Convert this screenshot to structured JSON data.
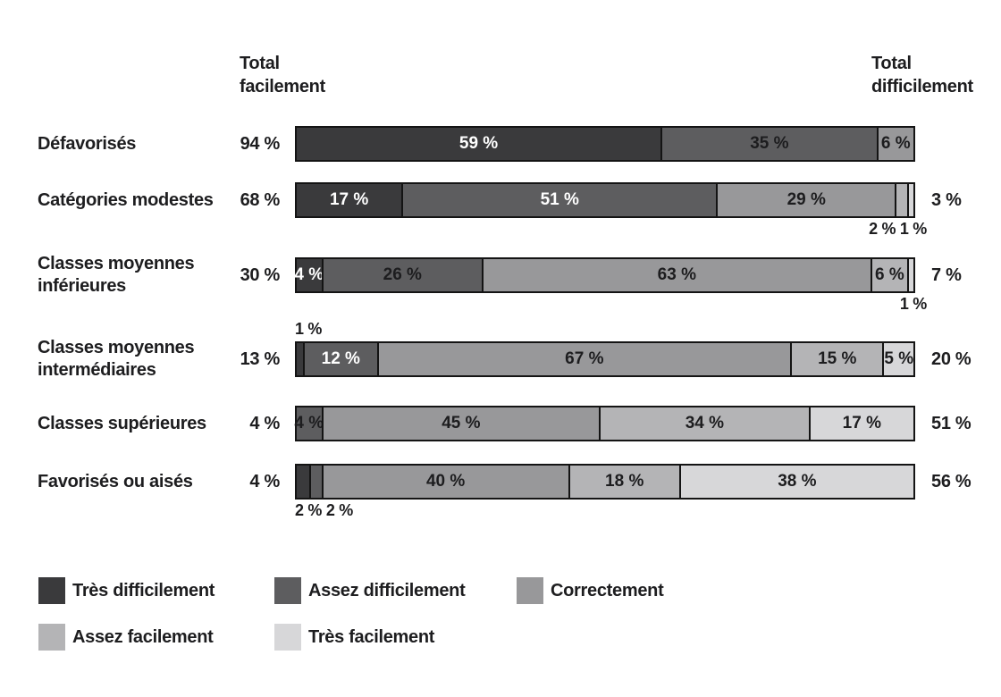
{
  "chart_data": {
    "type": "bar",
    "orientation": "horizontal",
    "stacked": true,
    "unit": "%",
    "title": "",
    "col_left_header": "Total facilement",
    "col_right_header": "Total difficilement",
    "grid": false,
    "legend_position": "bottom",
    "legend": [
      {
        "name": "tres-difficilement",
        "label": "Très difficilement",
        "color": "#3a3a3c"
      },
      {
        "name": "assez-difficilement",
        "label": "Assez difficilement",
        "color": "#5d5d5f"
      },
      {
        "name": "correctement",
        "label": "Correctement",
        "color": "#98989a"
      },
      {
        "name": "assez-facilement",
        "label": "Assez facilement",
        "color": "#b4b4b6"
      },
      {
        "name": "tres-facilement",
        "label": "Très facilement",
        "color": "#d7d7d9"
      }
    ],
    "label_colors": {
      "light": "#ffffff",
      "dark": "#1d1d1f"
    },
    "rows": [
      {
        "category_lines": [
          "Défavorisés"
        ],
        "total_left": "94 %",
        "total_right": "",
        "segments": [
          {
            "series": 0,
            "value": 59,
            "label": "59 %",
            "label_style": "light"
          },
          {
            "series": 1,
            "value": 35,
            "label": "35 %",
            "label_style": "dark"
          },
          {
            "series": 2,
            "value": 6,
            "label": "6 %",
            "label_style": "dark"
          }
        ],
        "callouts": []
      },
      {
        "category_lines": [
          "Catégories modestes"
        ],
        "total_left": "68 %",
        "total_right": "3 %",
        "segments": [
          {
            "series": 0,
            "value": 17,
            "label": "17 %",
            "label_style": "light"
          },
          {
            "series": 1,
            "value": 51,
            "label": "51 %",
            "label_style": "light"
          },
          {
            "series": 2,
            "value": 29,
            "label": "29 %",
            "label_style": "dark"
          },
          {
            "series": 3,
            "value": 2,
            "label": "",
            "label_style": "none"
          },
          {
            "series": 4,
            "value": 1,
            "label": "",
            "label_style": "none"
          }
        ],
        "callouts": [
          {
            "text": "2 % 1 %",
            "position": "below-right"
          }
        ]
      },
      {
        "category_lines": [
          "Classes moyennes",
          "inférieures"
        ],
        "total_left": "30 %",
        "total_right": "7 %",
        "segments": [
          {
            "series": 0,
            "value": 4,
            "label": "4 %",
            "label_style": "light"
          },
          {
            "series": 1,
            "value": 26,
            "label": "26 %",
            "label_style": "dark"
          },
          {
            "series": 2,
            "value": 63,
            "label": "63 %",
            "label_style": "dark"
          },
          {
            "series": 3,
            "value": 6,
            "label": "6 %",
            "label_style": "dark"
          },
          {
            "series": 4,
            "value": 1,
            "label": "",
            "label_style": "none"
          }
        ],
        "callouts": [
          {
            "text": "1 %",
            "position": "below-right"
          }
        ]
      },
      {
        "category_lines": [
          "Classes moyennes",
          "intermédiaires"
        ],
        "total_left": "13 %",
        "total_right": "20 %",
        "segments": [
          {
            "series": 0,
            "value": 1,
            "label": "",
            "label_style": "none"
          },
          {
            "series": 1,
            "value": 12,
            "label": "12 %",
            "label_style": "light"
          },
          {
            "series": 2,
            "value": 67,
            "label": "67 %",
            "label_style": "dark"
          },
          {
            "series": 3,
            "value": 15,
            "label": "15 %",
            "label_style": "dark"
          },
          {
            "series": 4,
            "value": 5,
            "label": "5 %",
            "label_style": "dark"
          }
        ],
        "callouts": [
          {
            "text": "1 %",
            "position": "above-left"
          }
        ]
      },
      {
        "category_lines": [
          "Classes supérieures"
        ],
        "total_left": "4 %",
        "total_right": "51 %",
        "segments": [
          {
            "series": 1,
            "value": 4,
            "label": "4 %",
            "label_style": "dark"
          },
          {
            "series": 2,
            "value": 45,
            "label": "45 %",
            "label_style": "dark"
          },
          {
            "series": 3,
            "value": 34,
            "label": "34 %",
            "label_style": "dark"
          },
          {
            "series": 4,
            "value": 17,
            "label": "17 %",
            "label_style": "dark"
          }
        ],
        "callouts": []
      },
      {
        "category_lines": [
          "Favorisés ou aisés"
        ],
        "total_left": "4 %",
        "total_right": "56 %",
        "segments": [
          {
            "series": 0,
            "value": 2,
            "label": "",
            "label_style": "none"
          },
          {
            "series": 1,
            "value": 2,
            "label": "",
            "label_style": "none"
          },
          {
            "series": 2,
            "value": 40,
            "label": "40 %",
            "label_style": "dark"
          },
          {
            "series": 3,
            "value": 18,
            "label": "18 %",
            "label_style": "dark"
          },
          {
            "series": 4,
            "value": 38,
            "label": "38 %",
            "label_style": "dark"
          }
        ],
        "callouts": [
          {
            "text": "2 % 2 %",
            "position": "below-left"
          }
        ]
      }
    ]
  }
}
